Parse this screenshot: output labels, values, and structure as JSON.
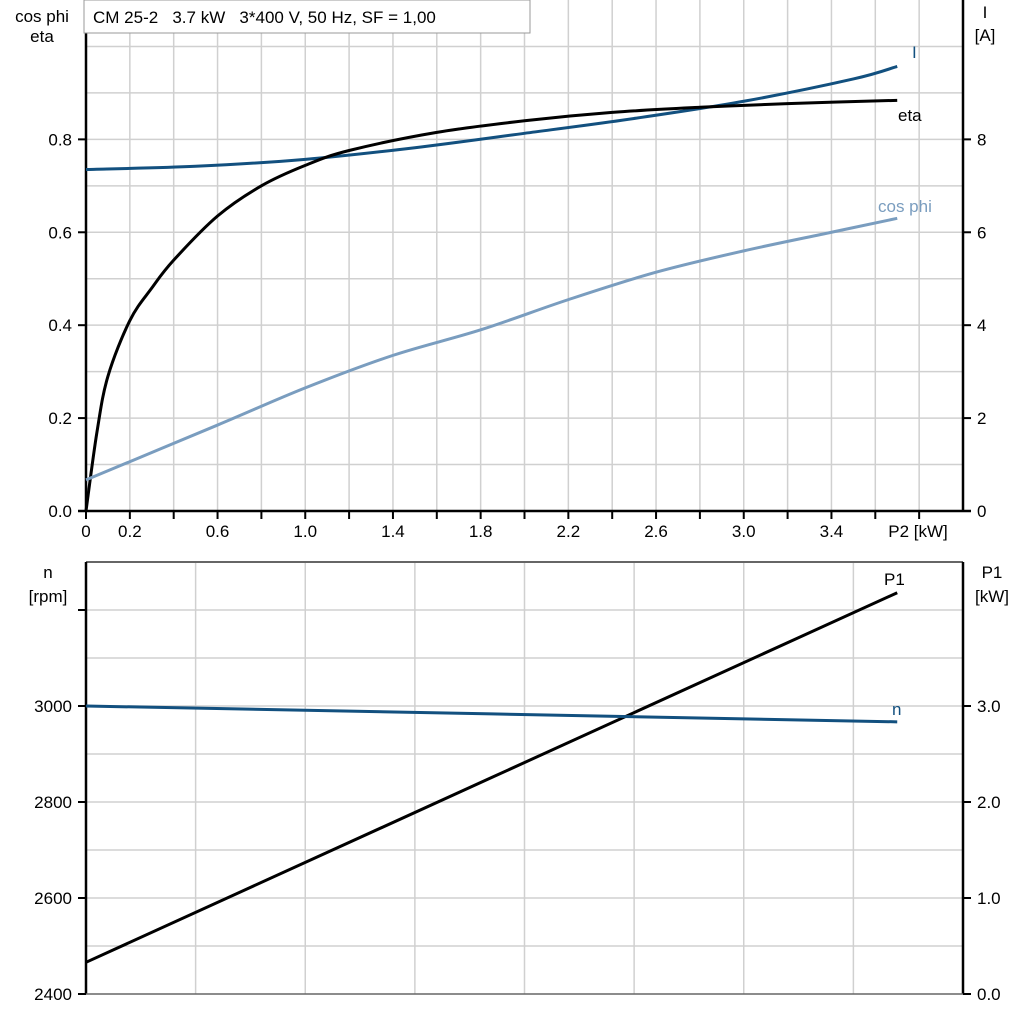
{
  "chart_data": [
    {
      "type": "line",
      "title": "CM 25-2   3.7 kW   3*400 V, 50 Hz, SF = 1,00",
      "xlabel": "P2 [kW]",
      "ylabel_left": [
        "cos phi",
        "eta"
      ],
      "ylabel_right": [
        "I",
        "[A]"
      ],
      "xlim": [
        0,
        4.0
      ],
      "ylim_left": [
        0,
        1.1
      ],
      "ylim_right": [
        0,
        11
      ],
      "x_tick_labels": [
        "0",
        "0.2",
        "0.6",
        "1.0",
        "1.4",
        "1.8",
        "2.2",
        "2.6",
        "3.0",
        "3.4"
      ],
      "y_left_tick_labels": [
        "0.0",
        "0.2",
        "0.4",
        "0.6",
        "0.8"
      ],
      "y_right_tick_labels": [
        "0",
        "2",
        "4",
        "6",
        "8"
      ],
      "grid": true,
      "series": [
        {
          "name": "I",
          "axis": "right",
          "color": "#12507f",
          "x": [
            0,
            0.5,
            1.0,
            1.5,
            2.0,
            2.5,
            3.0,
            3.5,
            3.7
          ],
          "y": [
            7.35,
            7.42,
            7.57,
            7.82,
            8.13,
            8.45,
            8.82,
            9.3,
            9.57
          ]
        },
        {
          "name": "eta",
          "axis": "left",
          "color": "#000000",
          "x": [
            0,
            0.05,
            0.1,
            0.2,
            0.3,
            0.4,
            0.6,
            0.8,
            1.0,
            1.2,
            1.6,
            2.0,
            2.4,
            2.8,
            3.2,
            3.7
          ],
          "y": [
            0,
            0.17,
            0.29,
            0.41,
            0.48,
            0.54,
            0.635,
            0.7,
            0.744,
            0.776,
            0.815,
            0.84,
            0.858,
            0.869,
            0.877,
            0.884
          ]
        },
        {
          "name": "cos phi",
          "axis": "left",
          "color": "#7a9dbf",
          "x": [
            0,
            0.6,
            1.0,
            1.4,
            1.8,
            2.2,
            2.6,
            3.0,
            3.4,
            3.7
          ],
          "y": [
            0.067,
            0.185,
            0.265,
            0.335,
            0.39,
            0.455,
            0.514,
            0.56,
            0.6,
            0.63
          ]
        }
      ]
    },
    {
      "type": "line",
      "ylabel_left": [
        "n",
        "[rpm]"
      ],
      "ylabel_right": [
        "P1",
        "[kW]"
      ],
      "xlim": [
        0,
        4.0
      ],
      "ylim_left": [
        2400,
        3300
      ],
      "ylim_right": [
        0,
        4.5
      ],
      "y_left_tick_labels": [
        "2400",
        "2600",
        "2800",
        "3000"
      ],
      "y_right_tick_labels": [
        "0.0",
        "1.0",
        "2.0",
        "3.0"
      ],
      "grid": true,
      "series": [
        {
          "name": "P1",
          "axis": "right",
          "color": "#000000",
          "x": [
            0,
            3.7
          ],
          "y": [
            0.33,
            4.18
          ]
        },
        {
          "name": "n",
          "axis": "left",
          "color": "#12507f",
          "x": [
            0,
            3.7
          ],
          "y": [
            3000,
            2967
          ]
        }
      ]
    }
  ]
}
